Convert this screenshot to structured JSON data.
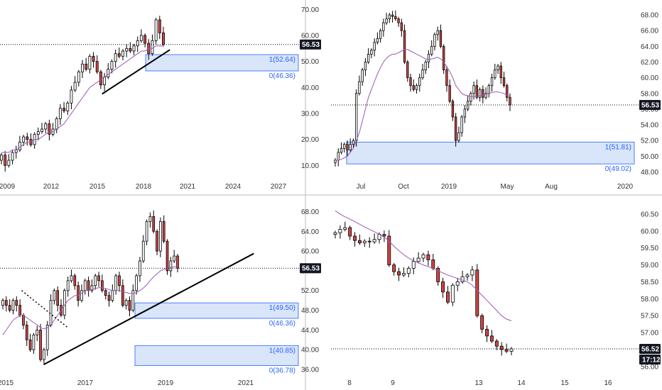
{
  "colors": {
    "up": "#ffffff",
    "down": "#d14444",
    "wick": "#000000",
    "ma": "#9b59b6",
    "zone_fill": "#cfdff7",
    "zone_stroke": "#2962ff",
    "price_tag_bg": "#131722",
    "grid_sep": "#cccccc"
  },
  "chart_data": [
    {
      "id": "monthly",
      "type": "candlestick",
      "x_ticks": [
        "2009",
        "2012",
        "2015",
        "2018",
        "2021",
        "2024",
        "2027"
      ],
      "y_ticks": [
        "70.00",
        "60.00",
        "50.00",
        "40.00",
        "30.00",
        "20.00",
        "10.00"
      ],
      "ylim": [
        6,
        72
      ],
      "last_price": "56.53",
      "zones": [
        {
          "top": 52.64,
          "bottom": 46.36,
          "top_label": "1(52.64)",
          "bottom_label": "0(46.36)"
        }
      ],
      "trendlines": [
        {
          "x1": 2015.3,
          "y1": 37.5,
          "x2": 2019.8,
          "y2": 54.5
        }
      ],
      "candles_x_range": [
        2008.0,
        2019.5
      ],
      "series_close": [
        14,
        10,
        12,
        15,
        16,
        19,
        21,
        20,
        18,
        22,
        23,
        24,
        26,
        22,
        24,
        28,
        32,
        31,
        34,
        39,
        42,
        46,
        49,
        47,
        52,
        50,
        46,
        41,
        44,
        47,
        50,
        53,
        52,
        54,
        55,
        54,
        56,
        58,
        60,
        57,
        53,
        58,
        66,
        61,
        56.53
      ],
      "ma_close": [
        15,
        15,
        15,
        16,
        16,
        17,
        18,
        19,
        19,
        20,
        20,
        21,
        22,
        23,
        23,
        24,
        25,
        26,
        28,
        30,
        32,
        34,
        36,
        38,
        40,
        41,
        42,
        43,
        44,
        45,
        46,
        47,
        48,
        49,
        50,
        51,
        52,
        53,
        54,
        54,
        55,
        55,
        56,
        56,
        56
      ]
    },
    {
      "id": "daily",
      "type": "candlestick",
      "x_ticks": [
        "Jul",
        "Oct",
        "2019",
        "May",
        "Aug",
        "2020"
      ],
      "y_ticks": [
        "68.00",
        "66.00",
        "64.00",
        "62.00",
        "60.00",
        "58.00",
        "56.00",
        "54.00",
        "52.00",
        "50.00",
        "48.00"
      ],
      "ylim": [
        47.5,
        69
      ],
      "last_price": "56.53",
      "zones": [
        {
          "top": 51.81,
          "bottom": 49.02,
          "top_label": "1(51.81)",
          "bottom_label": "0(49.02)"
        }
      ],
      "series_close": [
        49.5,
        50.5,
        51,
        51.5,
        50.8,
        51.5,
        52,
        58,
        59.5,
        61,
        62,
        63,
        63.5,
        64.5,
        65,
        66,
        67,
        67.5,
        68,
        67.8,
        67.5,
        67,
        66,
        62,
        60,
        59,
        58.5,
        59,
        60,
        61,
        62,
        63,
        64,
        65.5,
        66,
        64,
        61,
        59,
        57,
        55,
        52,
        53,
        55,
        56,
        57,
        58,
        59,
        57.5,
        58.5,
        57.5,
        58,
        59,
        60,
        61,
        61.5,
        60,
        59,
        57.5,
        56.53
      ],
      "ma_close": [
        49.5,
        49.5,
        49.6,
        49.8,
        50,
        50.5,
        51,
        52,
        53,
        54.5,
        56,
        57.5,
        58.5,
        59.5,
        60.5,
        61.3,
        62,
        62.5,
        62.8,
        63,
        63,
        63.2,
        63.4,
        63.6,
        63.6,
        63.4,
        63.2,
        63,
        62.8,
        62.6,
        62.4,
        62.3,
        62.4,
        62.5,
        62.6,
        62.4,
        62,
        61.4,
        60.8,
        60,
        59,
        58.5,
        58,
        57.8,
        57.7,
        57.6,
        57.6,
        57.6,
        57.7,
        57.8,
        57.9,
        58,
        58.1,
        58.2,
        58.2,
        58.1,
        58,
        57.8,
        57.6
      ]
    },
    {
      "id": "weekly",
      "type": "candlestick",
      "x_ticks": [
        "2015",
        "2017",
        "2019",
        "2021"
      ],
      "y_ticks": [
        "68.00",
        "64.00",
        "60.00",
        "56.00",
        "52.00",
        "48.00",
        "44.00",
        "40.00",
        "36.00"
      ],
      "ylim": [
        35,
        69.5
      ],
      "last_price": "56.53",
      "zones": [
        {
          "top": 49.5,
          "bottom": 46.36,
          "top_label": "1(49.50)",
          "bottom_label": "0(46.36)"
        },
        {
          "top": 40.85,
          "bottom": 36.78,
          "top_label": "1(40.85)",
          "bottom_label": "0(36.78)"
        }
      ],
      "trendlines": [
        {
          "x1": 2015.95,
          "y1": 37,
          "x2": 2021.2,
          "y2": 59.5,
          "style": "solid"
        },
        {
          "x1": 2015.4,
          "y1": 52,
          "x2": 2016.55,
          "y2": 44.5,
          "style": "dotted"
        }
      ],
      "series_close": [
        50,
        49,
        48,
        50,
        49,
        47,
        45,
        42,
        40,
        43,
        44,
        38,
        40,
        45,
        50,
        52,
        49,
        47,
        52,
        54,
        55,
        53,
        50,
        52,
        54,
        52,
        53,
        55,
        54,
        52,
        51,
        50,
        52,
        55,
        53,
        49,
        50,
        48,
        52,
        55,
        58,
        62,
        66,
        67,
        64,
        60,
        66,
        62,
        56,
        58,
        59,
        56.53
      ],
      "ma_close": [
        43,
        44,
        45,
        46,
        46.5,
        47,
        47,
        46.5,
        46,
        45.5,
        45,
        44.5,
        44.2,
        44.5,
        45,
        46,
        47,
        48,
        49,
        50,
        50.5,
        51,
        51,
        51.5,
        52,
        52,
        52.2,
        52.4,
        52.6,
        52.6,
        52.4,
        52.2,
        52,
        52,
        52,
        51.8,
        51.6,
        51.4,
        51.4,
        51.6,
        52,
        52.5,
        53.2,
        54,
        54.8,
        55.4,
        56,
        56.3,
        56.5,
        56.7,
        56.8,
        57
      ]
    },
    {
      "id": "intraday",
      "type": "candlestick",
      "x_ticks": [
        "8",
        "9",
        "13",
        "14",
        "15",
        "16"
      ],
      "y_ticks": [
        "60.50",
        "60.00",
        "59.50",
        "59.00",
        "58.50",
        "58.00",
        "57.50",
        "57.00",
        "56.50",
        "56.00"
      ],
      "ylim": [
        55.85,
        60.75
      ],
      "last_price": "56.52",
      "countdown": "17:12",
      "series_close": [
        59.95,
        60.05,
        60.1,
        59.85,
        59.72,
        59.65,
        59.7,
        59.68,
        59.75,
        59.9,
        59.85,
        59,
        58.8,
        58.7,
        58.75,
        58.9,
        59.1,
        59.2,
        59.3,
        59.15,
        58.9,
        58.5,
        58.2,
        57.9,
        58.4,
        58.5,
        58.65,
        58.7,
        58.85,
        57.5,
        57.1,
        56.9,
        56.75,
        56.6,
        56.5,
        56.45,
        56.52
      ],
      "ma_close": [
        60.6,
        60.5,
        60.42,
        60.35,
        60.28,
        60.2,
        60.12,
        60.05,
        59.98,
        59.9,
        59.82,
        59.7,
        59.55,
        59.42,
        59.3,
        59.2,
        59.12,
        59.06,
        59,
        58.95,
        58.9,
        58.83,
        58.76,
        58.7,
        58.65,
        58.6,
        58.55,
        58.5,
        58.4,
        58.25,
        58.1,
        57.95,
        57.8,
        57.65,
        57.5,
        57.4,
        57.35
      ]
    }
  ]
}
